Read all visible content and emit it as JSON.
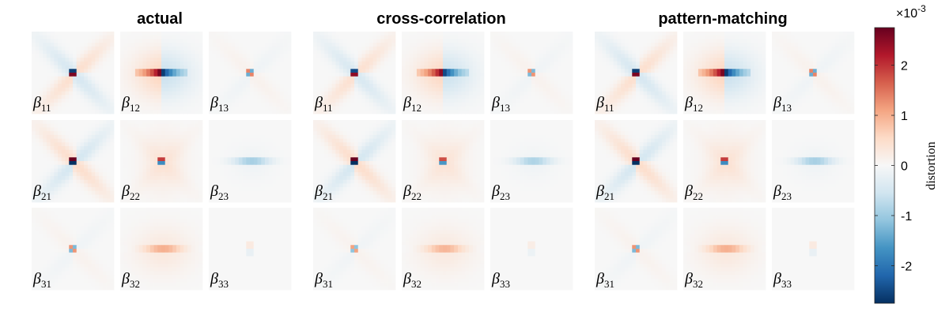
{
  "chart_data": {
    "type": "heatmap",
    "panels": [
      {
        "title": "actual",
        "amplitudes": {
          "11": -0.95,
          "12": -1.0,
          "13": 0.55,
          "21": 1.0,
          "22": 0.7,
          "23": 0.3,
          "31": 0.5,
          "32": 0.3,
          "33": 0.15
        }
      },
      {
        "title": "cross-correlation",
        "amplitudes": {
          "11": -0.9,
          "12": -0.95,
          "13": 0.5,
          "21": 1.0,
          "22": 0.65,
          "23": 0.28,
          "31": 0.45,
          "32": 0.28,
          "33": 0.12
        }
      },
      {
        "title": "pattern-matching",
        "amplitudes": {
          "11": -0.95,
          "12": -1.0,
          "13": 0.55,
          "21": 1.0,
          "22": 0.7,
          "23": 0.3,
          "31": 0.5,
          "32": 0.3,
          "33": 0.15
        }
      }
    ],
    "cells": [
      {
        "row": 1,
        "col": 1,
        "label": "β",
        "sub": "11"
      },
      {
        "row": 1,
        "col": 2,
        "label": "β",
        "sub": "12"
      },
      {
        "row": 1,
        "col": 3,
        "label": "β",
        "sub": "13"
      },
      {
        "row": 2,
        "col": 1,
        "label": "β",
        "sub": "21"
      },
      {
        "row": 2,
        "col": 2,
        "label": "β",
        "sub": "22"
      },
      {
        "row": 2,
        "col": 3,
        "label": "β",
        "sub": "23"
      },
      {
        "row": 3,
        "col": 1,
        "label": "β",
        "sub": "31"
      },
      {
        "row": 3,
        "col": 2,
        "label": "β",
        "sub": "32"
      },
      {
        "row": 3,
        "col": 3,
        "label": "β",
        "sub": "33"
      }
    ],
    "colorbar": {
      "label": "distortion",
      "scale_base": "×10",
      "scale_exponent": "-3",
      "range": [
        -2.75,
        2.75
      ],
      "ticks": [
        {
          "value": 2,
          "label": "2"
        },
        {
          "value": 1,
          "label": "1"
        },
        {
          "value": 0,
          "label": "0"
        },
        {
          "value": -1,
          "label": "-1"
        },
        {
          "value": -2,
          "label": "-2"
        }
      ],
      "colormap": [
        "#053061",
        "#2166ac",
        "#4393c3",
        "#92c5de",
        "#d1e5f0",
        "#f7f7f7",
        "#fddbc7",
        "#f4a582",
        "#d6604d",
        "#b2182b",
        "#67001f"
      ]
    }
  }
}
